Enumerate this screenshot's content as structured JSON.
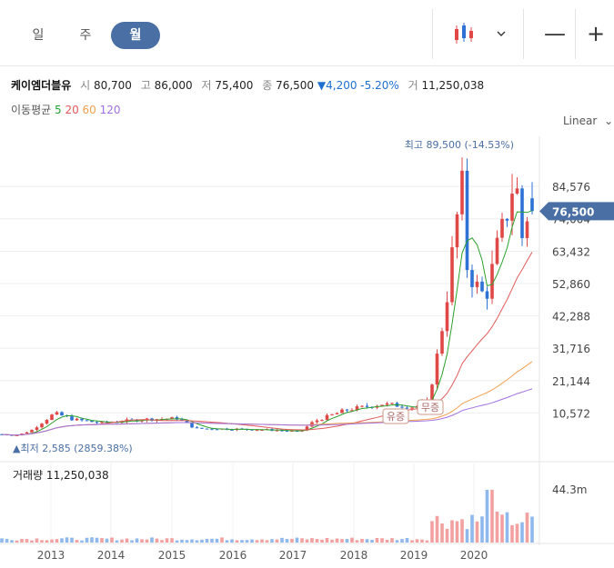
{
  "tabs": [
    {
      "label": "일"
    },
    {
      "label": "주"
    },
    {
      "label": "월",
      "active": true
    }
  ],
  "toolbar": {
    "chart_type_icon": "candlestick-icon",
    "dropdown_icon": "chevron-down-icon",
    "zoom_out": "—",
    "zoom_in": "+"
  },
  "stock": {
    "name": "케이엠더블유",
    "open_label": "시",
    "open": "80,700",
    "high_label": "고",
    "high": "86,000",
    "low_label": "저",
    "low": "75,400",
    "close_label": "종",
    "close": "76,500",
    "change": "▼4,200 -5.20%",
    "volume_label": "거",
    "volume": "11,250,038"
  },
  "ma_legend": {
    "label": "이동평균",
    "items": [
      {
        "period": "5",
        "color": "#2ca02c"
      },
      {
        "period": "20",
        "color": "#e15a5a"
      },
      {
        "period": "60",
        "color": "#f0a050"
      },
      {
        "period": "120",
        "color": "#a070e0"
      }
    ]
  },
  "scale_mode": "Linear",
  "annotations": {
    "high": "최고 89,500 (-14.53%)",
    "low": "최저 2,585 (2859.38%)",
    "events": [
      "유증",
      "무증"
    ],
    "current_price": "76,500"
  },
  "volume_panel": {
    "label": "거래량",
    "value": "11,250,038",
    "axis_label": "44.3m"
  },
  "colors": {
    "up": "#e04848",
    "down": "#2f72d6",
    "accent": "#4a6fa5"
  },
  "chart_data": {
    "type": "candlestick",
    "x_ticks": [
      "2013",
      "2014",
      "2015",
      "2016",
      "2017",
      "2018",
      "2019",
      "2020"
    ],
    "y_ticks": [
      "84,576",
      "74,004",
      "63,432",
      "52,860",
      "42,288",
      "31,716",
      "21,144",
      "10,572"
    ],
    "y_range": [
      0,
      95000
    ],
    "high_value": 89500,
    "low_value": 2585,
    "last_close": 76500
  }
}
